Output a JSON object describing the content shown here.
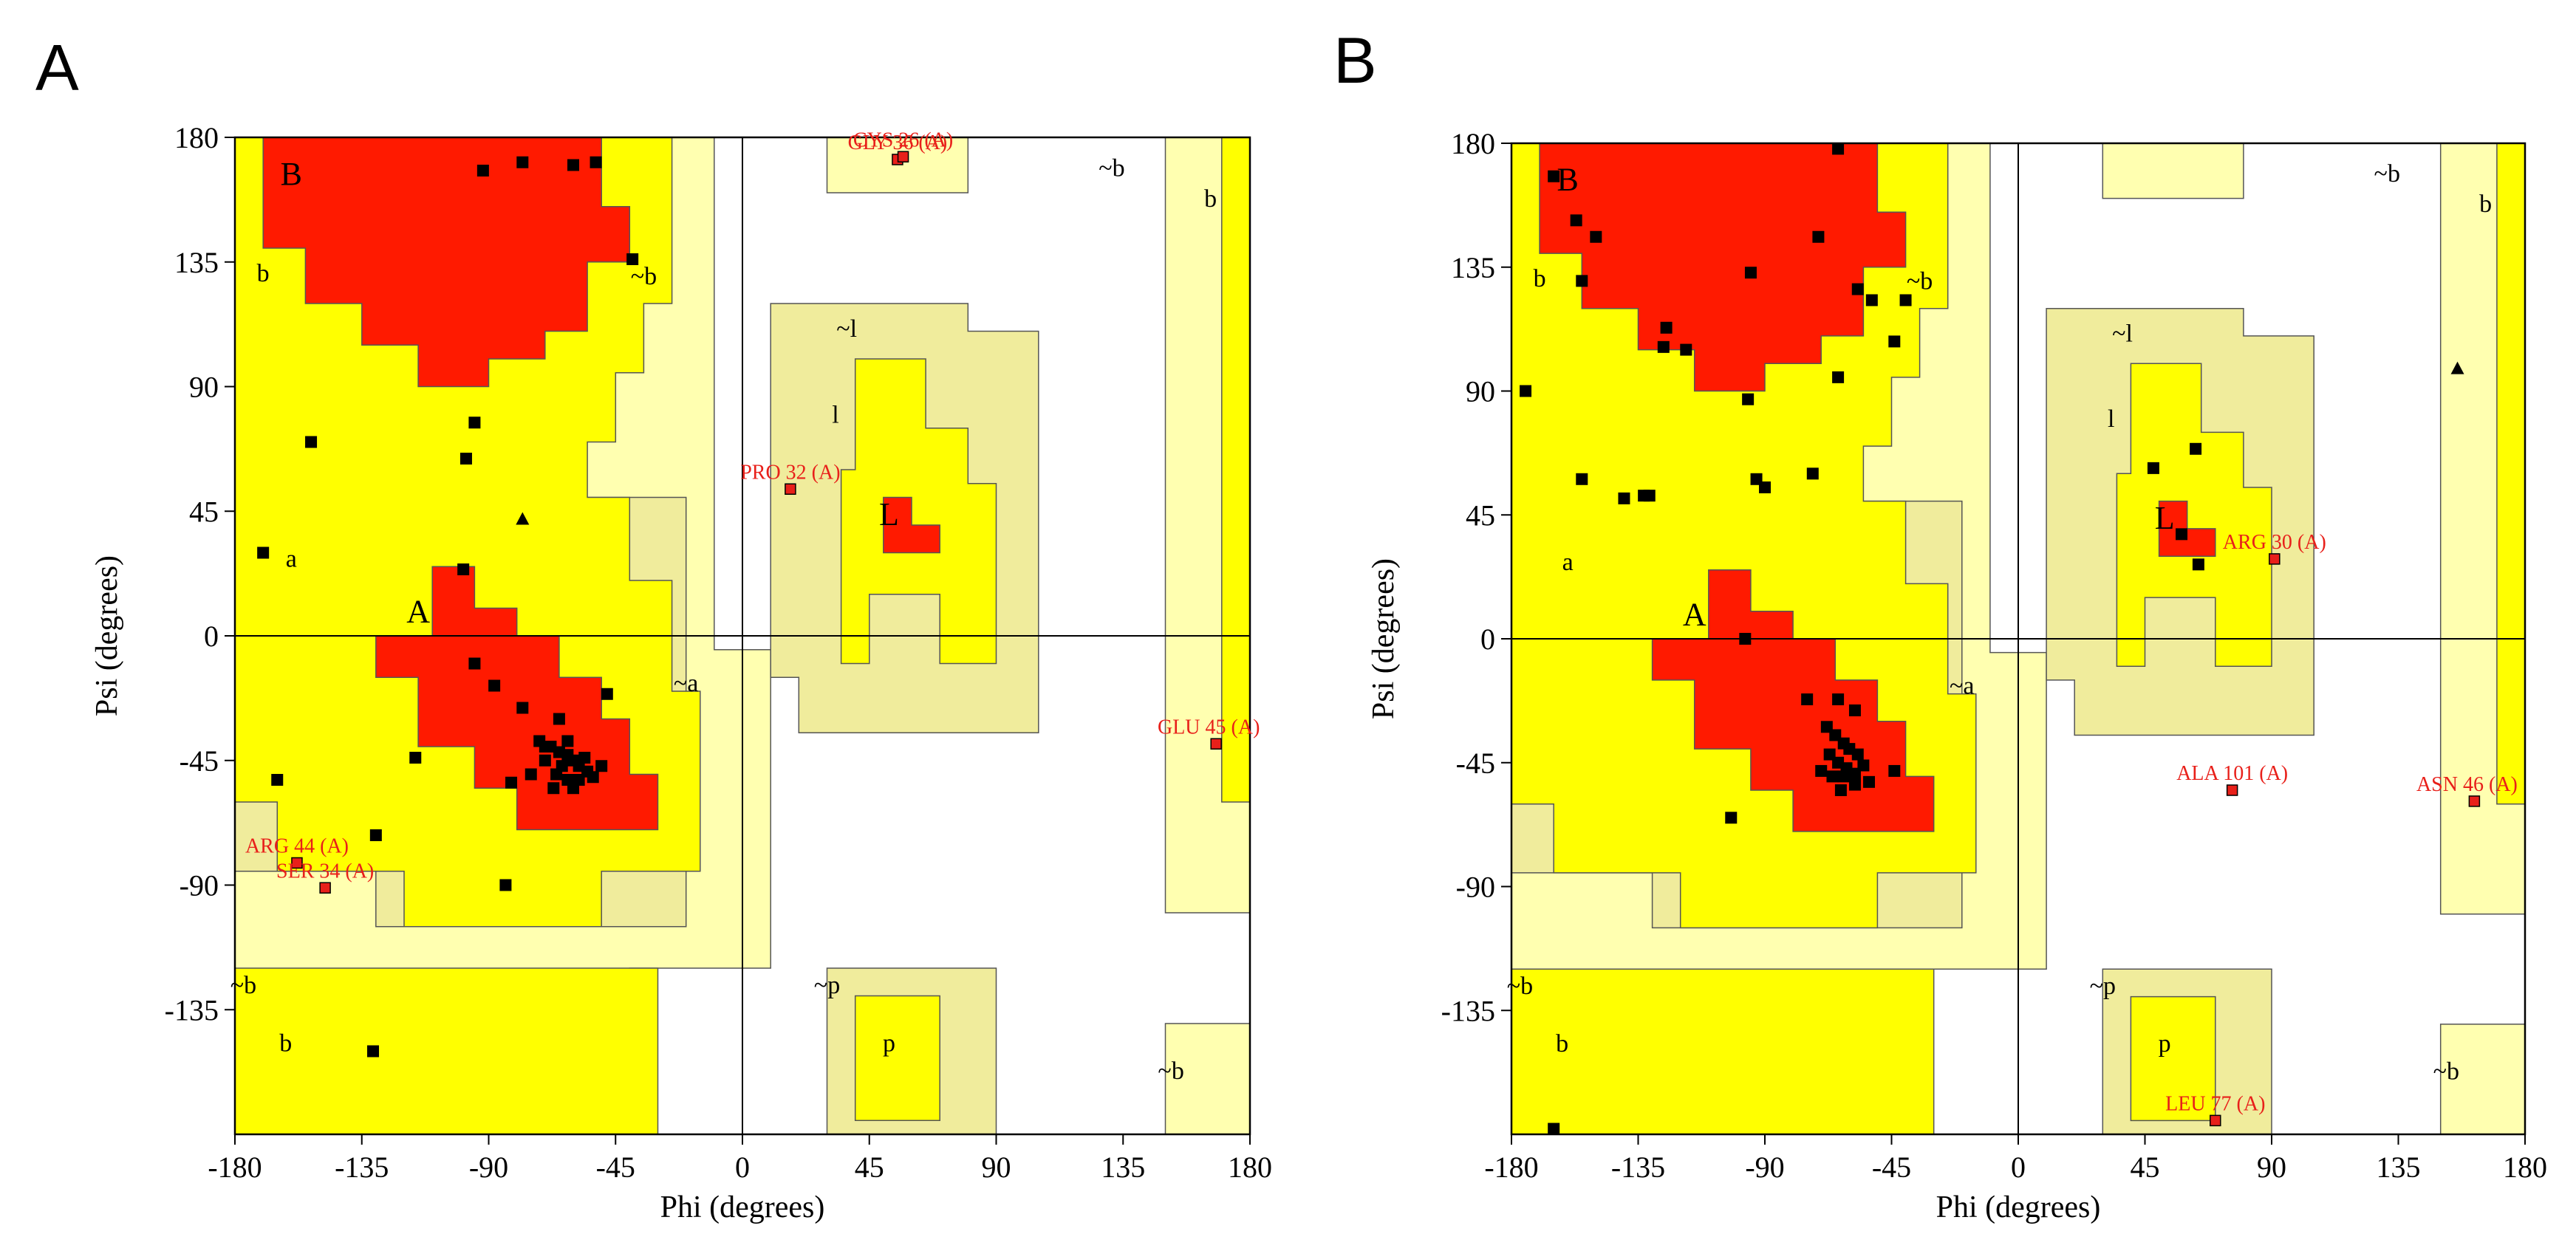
{
  "figure": {
    "panels": [
      "A",
      "B"
    ]
  },
  "colors": {
    "core": "#ff1a00",
    "allowed": "#ffff00",
    "generous": "#f0ec9c",
    "extra": "#ffffb0",
    "point": "#000000",
    "outlier_fill": "#e8201a",
    "outlier_text": "#e8201a"
  },
  "region_labels": {
    "B": "B",
    "b": "b",
    "tilde_b": "~b",
    "A": "A",
    "a": "a",
    "tilde_a": "~a",
    "L": "L",
    "l": "l",
    "tilde_l": "~l",
    "p": "p",
    "tilde_p": "~p"
  },
  "chart_data": [
    {
      "type": "scatter",
      "panel": "A",
      "title": "",
      "xlabel": "Phi (degrees)",
      "ylabel": "Psi (degrees)",
      "xlim": [
        -180,
        180
      ],
      "ylim": [
        -180,
        180
      ],
      "xticks": [
        -180,
        -135,
        -90,
        -45,
        0,
        45,
        90,
        135,
        180
      ],
      "yticks": [
        -135,
        -90,
        -45,
        0,
        45,
        90,
        135,
        180
      ],
      "xtick_labels": [
        "-180",
        "-135",
        "-90",
        "-45",
        "0",
        "45",
        "90",
        "135",
        "180"
      ],
      "ytick_labels": [
        "-135",
        "-90",
        "-45",
        "0",
        "45",
        "90",
        "135",
        "180"
      ],
      "points": [
        [
          -92,
          168
        ],
        [
          -78,
          171
        ],
        [
          -60,
          170
        ],
        [
          -52,
          171
        ],
        [
          -39,
          136
        ],
        [
          -95,
          77
        ],
        [
          -98,
          64
        ],
        [
          -153,
          70
        ],
        [
          -170,
          30
        ],
        [
          -99,
          24
        ],
        [
          -95,
          -10
        ],
        [
          -88,
          -18
        ],
        [
          -78,
          -26
        ],
        [
          -65,
          -30
        ],
        [
          -48,
          -21
        ],
        [
          -72,
          -38
        ],
        [
          -68,
          -40
        ],
        [
          -65,
          -42
        ],
        [
          -62,
          -43
        ],
        [
          -60,
          -45
        ],
        [
          -58,
          -47
        ],
        [
          -56,
          -44
        ],
        [
          -64,
          -47
        ],
        [
          -70,
          -45
        ],
        [
          -66,
          -50
        ],
        [
          -62,
          -52
        ],
        [
          -58,
          -52
        ],
        [
          -55,
          -49
        ],
        [
          -53,
          -51
        ],
        [
          -60,
          -55
        ],
        [
          -67,
          -55
        ],
        [
          -75,
          -50
        ],
        [
          -70,
          -40
        ],
        [
          -62,
          -38
        ],
        [
          -50,
          -47
        ],
        [
          -116,
          -44
        ],
        [
          -82,
          -53
        ],
        [
          -130,
          -72
        ],
        [
          -165,
          -52
        ],
        [
          -84,
          -90
        ],
        [
          -131,
          -150
        ]
      ],
      "glycine_points": [
        [
          -78,
          42
        ]
      ],
      "outliers": [
        {
          "label": "GLY 36 (A)",
          "phi": 55,
          "psi": 172
        },
        {
          "label": "CYS 26 (A)",
          "phi": 57,
          "psi": 173
        },
        {
          "label": "PRO 32 (A)",
          "phi": 17,
          "psi": 53
        },
        {
          "label": "GLU 45 (A)",
          "phi": 168,
          "psi": -39
        },
        {
          "label": "ARG 44 (A)",
          "phi": -158,
          "psi": -82
        },
        {
          "label": "SER 34 (A)",
          "phi": -148,
          "psi": -91
        }
      ]
    },
    {
      "type": "scatter",
      "panel": "B",
      "title": "",
      "xlabel": "Phi (degrees)",
      "ylabel": "Psi (degrees)",
      "xlim": [
        -180,
        180
      ],
      "ylim": [
        -180,
        180
      ],
      "xticks": [
        -180,
        -135,
        -90,
        -45,
        0,
        45,
        90,
        135,
        180
      ],
      "yticks": [
        -135,
        -90,
        -45,
        0,
        45,
        90,
        135,
        180
      ],
      "xtick_labels": [
        "-180",
        "-135",
        "-90",
        "-45",
        "0",
        "45",
        "90",
        "135",
        "180"
      ],
      "ytick_labels": [
        "-135",
        "-90",
        "-45",
        "0",
        "45",
        "90",
        "135",
        "180"
      ],
      "points": [
        [
          -165,
          168
        ],
        [
          -157,
          152
        ],
        [
          -155,
          130
        ],
        [
          -150,
          146
        ],
        [
          -125,
          113
        ],
        [
          -126,
          106
        ],
        [
          -118,
          105
        ],
        [
          -95,
          133
        ],
        [
          -64,
          178
        ],
        [
          -71,
          146
        ],
        [
          -57,
          127
        ],
        [
          -52,
          123
        ],
        [
          -40,
          123
        ],
        [
          -44,
          108
        ],
        [
          -64,
          95
        ],
        [
          -96,
          87
        ],
        [
          -175,
          90
        ],
        [
          -155,
          58
        ],
        [
          -140,
          51
        ],
        [
          -133,
          52
        ],
        [
          -131,
          52
        ],
        [
          -93,
          58
        ],
        [
          -90,
          55
        ],
        [
          -73,
          60
        ],
        [
          -97,
          0
        ],
        [
          -75,
          -22
        ],
        [
          -64,
          -22
        ],
        [
          -58,
          -26
        ],
        [
          -68,
          -32
        ],
        [
          -65,
          -35
        ],
        [
          -62,
          -38
        ],
        [
          -60,
          -40
        ],
        [
          -57,
          -42
        ],
        [
          -67,
          -42
        ],
        [
          -64,
          -45
        ],
        [
          -61,
          -47
        ],
        [
          -58,
          -49
        ],
        [
          -55,
          -46
        ],
        [
          -62,
          -50
        ],
        [
          -66,
          -50
        ],
        [
          -70,
          -48
        ],
        [
          -58,
          -53
        ],
        [
          -53,
          -52
        ],
        [
          -44,
          -48
        ],
        [
          -63,
          -55
        ],
        [
          -102,
          -65
        ],
        [
          -165,
          -178
        ],
        [
          48,
          62
        ],
        [
          58,
          38
        ],
        [
          63,
          69
        ],
        [
          64,
          27
        ]
      ],
      "glycine_points": [
        [
          156,
          98
        ]
      ],
      "outliers": [
        {
          "label": "ARG 30 (A)",
          "phi": 91,
          "psi": 29
        },
        {
          "label": "ALA 101 (A)",
          "phi": 76,
          "psi": -55
        },
        {
          "label": "ASN 46 (A)",
          "phi": 162,
          "psi": -59
        },
        {
          "label": "LEU 77 (A)",
          "phi": 70,
          "psi": -175
        }
      ]
    }
  ]
}
